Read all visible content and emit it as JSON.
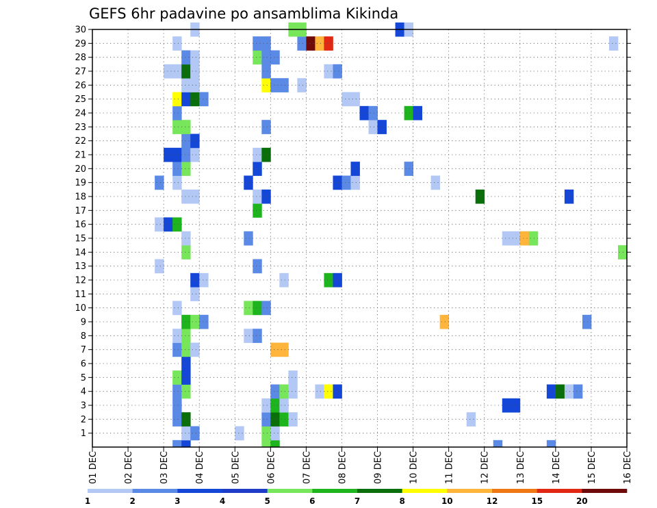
{
  "chart_data": {
    "type": "heatmap",
    "title": "GEFS 6hr padavine po ansamblima Kikinda",
    "xlabel": "",
    "ylabel": "",
    "x_tick_labels": [
      "01 DEC",
      "02 DEC",
      "03 DEC",
      "04 DEC",
      "05 DEC",
      "06 DEC",
      "07 DEC",
      "08 DEC",
      "09 DEC",
      "10 DEC",
      "11 DEC",
      "12 DEC",
      "13 DEC",
      "14 DEC",
      "15 DEC",
      "16 DEC"
    ],
    "y_tick_labels": [
      "1",
      "2",
      "3",
      "4",
      "5",
      "6",
      "7",
      "8",
      "9",
      "10",
      "11",
      "12",
      "13",
      "14",
      "15",
      "16",
      "17",
      "18",
      "19",
      "20",
      "21",
      "22",
      "23",
      "24",
      "25",
      "26",
      "27",
      "28",
      "29",
      "30"
    ],
    "xlim": [
      0,
      15
    ],
    "ylim": [
      0,
      30
    ],
    "time_step_days": 0.25,
    "grid": true,
    "colorbar": {
      "placement": "bottom",
      "bounds": [
        "1",
        "2",
        "3",
        "4",
        "5",
        "6",
        "7",
        "8",
        "10",
        "12",
        "15",
        "20"
      ],
      "colors": [
        "#b4c8f5",
        "#5a8ae6",
        "#1446d7",
        "#1e3cc8",
        "#78e65a",
        "#1eb41e",
        "#0a6e0a",
        "#ffff00",
        "#ffb43c",
        "#f07814",
        "#e02814",
        "#6e0a0a"
      ]
    },
    "cells": [
      {
        "day": 2.25,
        "m": 0,
        "v": 2
      },
      {
        "day": 2.5,
        "m": 0,
        "v": 3
      },
      {
        "day": 4.75,
        "m": 0,
        "v": 5
      },
      {
        "day": 5.0,
        "m": 0,
        "v": 6
      },
      {
        "day": 11.25,
        "m": 0,
        "v": 2
      },
      {
        "day": 12.75,
        "m": 0,
        "v": 2
      },
      {
        "day": 2.5,
        "m": 1,
        "v": 1
      },
      {
        "day": 2.75,
        "m": 1,
        "v": 2
      },
      {
        "day": 4.0,
        "m": 1,
        "v": 1
      },
      {
        "day": 4.75,
        "m": 1,
        "v": 5
      },
      {
        "day": 5.0,
        "m": 1,
        "v": 1
      },
      {
        "day": 2.25,
        "m": 2,
        "v": 2
      },
      {
        "day": 2.5,
        "m": 2,
        "v": 7.5
      },
      {
        "day": 4.75,
        "m": 2,
        "v": 2
      },
      {
        "day": 5.0,
        "m": 2,
        "v": 7
      },
      {
        "day": 5.25,
        "m": 2,
        "v": 6
      },
      {
        "day": 5.5,
        "m": 2,
        "v": 1
      },
      {
        "day": 10.5,
        "m": 2,
        "v": 1
      },
      {
        "day": 2.25,
        "m": 3,
        "v": 2
      },
      {
        "day": 4.75,
        "m": 3,
        "v": 1
      },
      {
        "day": 5.0,
        "m": 3,
        "v": 6
      },
      {
        "day": 5.25,
        "m": 3,
        "v": 1
      },
      {
        "day": 11.5,
        "m": 3,
        "v": 3
      },
      {
        "day": 11.75,
        "m": 3,
        "v": 3
      },
      {
        "day": 2.25,
        "m": 4,
        "v": 2
      },
      {
        "day": 2.5,
        "m": 4,
        "v": 5
      },
      {
        "day": 5.0,
        "m": 4,
        "v": 2
      },
      {
        "day": 5.25,
        "m": 4,
        "v": 5
      },
      {
        "day": 5.5,
        "m": 4,
        "v": 1
      },
      {
        "day": 6.25,
        "m": 4,
        "v": 1
      },
      {
        "day": 6.5,
        "m": 4,
        "v": 9
      },
      {
        "day": 6.75,
        "m": 4,
        "v": 3
      },
      {
        "day": 12.75,
        "m": 4,
        "v": 3
      },
      {
        "day": 13.0,
        "m": 4,
        "v": 7
      },
      {
        "day": 13.25,
        "m": 4,
        "v": 1
      },
      {
        "day": 13.5,
        "m": 4,
        "v": 2
      },
      {
        "day": 2.25,
        "m": 5,
        "v": 5
      },
      {
        "day": 2.5,
        "m": 5,
        "v": 3
      },
      {
        "day": 5.5,
        "m": 5,
        "v": 1
      },
      {
        "day": 2.5,
        "m": 6,
        "v": 3
      },
      {
        "day": 2.25,
        "m": 7,
        "v": 2
      },
      {
        "day": 2.5,
        "m": 7,
        "v": 5
      },
      {
        "day": 2.75,
        "m": 7,
        "v": 1
      },
      {
        "day": 5.0,
        "m": 7,
        "v": 11
      },
      {
        "day": 5.25,
        "m": 7,
        "v": 11
      },
      {
        "day": 2.25,
        "m": 8,
        "v": 1
      },
      {
        "day": 2.5,
        "m": 8,
        "v": 5
      },
      {
        "day": 4.25,
        "m": 8,
        "v": 1
      },
      {
        "day": 4.5,
        "m": 8,
        "v": 2
      },
      {
        "day": 2.5,
        "m": 9,
        "v": 6
      },
      {
        "day": 2.75,
        "m": 9,
        "v": 5
      },
      {
        "day": 3.0,
        "m": 9,
        "v": 2
      },
      {
        "day": 9.75,
        "m": 9,
        "v": 11
      },
      {
        "day": 13.75,
        "m": 9,
        "v": 2
      },
      {
        "day": 2.25,
        "m": 10,
        "v": 1
      },
      {
        "day": 4.25,
        "m": 10,
        "v": 5
      },
      {
        "day": 4.5,
        "m": 10,
        "v": 6
      },
      {
        "day": 4.75,
        "m": 10,
        "v": 2
      },
      {
        "day": 2.75,
        "m": 11,
        "v": 1
      },
      {
        "day": 2.75,
        "m": 12,
        "v": 3
      },
      {
        "day": 3.0,
        "m": 12,
        "v": 1
      },
      {
        "day": 5.25,
        "m": 12,
        "v": 1
      },
      {
        "day": 6.5,
        "m": 12,
        "v": 6
      },
      {
        "day": 6.75,
        "m": 12,
        "v": 3
      },
      {
        "day": 1.75,
        "m": 13,
        "v": 1
      },
      {
        "day": 4.5,
        "m": 13,
        "v": 2
      },
      {
        "day": 2.5,
        "m": 14,
        "v": 5
      },
      {
        "day": 14.75,
        "m": 14,
        "v": 5
      },
      {
        "day": 2.5,
        "m": 15,
        "v": 1
      },
      {
        "day": 4.25,
        "m": 15,
        "v": 2
      },
      {
        "day": 11.5,
        "m": 15,
        "v": 1
      },
      {
        "day": 11.75,
        "m": 15,
        "v": 1
      },
      {
        "day": 12.0,
        "m": 15,
        "v": 11
      },
      {
        "day": 12.25,
        "m": 15,
        "v": 5
      },
      {
        "day": 1.75,
        "m": 16,
        "v": 1
      },
      {
        "day": 2.0,
        "m": 16,
        "v": 3
      },
      {
        "day": 2.25,
        "m": 16,
        "v": 6
      },
      {
        "day": 4.5,
        "m": 17,
        "v": 6
      },
      {
        "day": 2.5,
        "m": 18,
        "v": 1
      },
      {
        "day": 2.75,
        "m": 18,
        "v": 1
      },
      {
        "day": 4.5,
        "m": 18,
        "v": 1
      },
      {
        "day": 4.75,
        "m": 18,
        "v": 3
      },
      {
        "day": 10.75,
        "m": 18,
        "v": 7.5
      },
      {
        "day": 13.25,
        "m": 18,
        "v": 3
      },
      {
        "day": 1.75,
        "m": 19,
        "v": 2
      },
      {
        "day": 2.25,
        "m": 19,
        "v": 1
      },
      {
        "day": 4.25,
        "m": 19,
        "v": 3
      },
      {
        "day": 6.75,
        "m": 19,
        "v": 3
      },
      {
        "day": 7.0,
        "m": 19,
        "v": 2
      },
      {
        "day": 7.25,
        "m": 19,
        "v": 1
      },
      {
        "day": 9.5,
        "m": 19,
        "v": 1
      },
      {
        "day": 2.25,
        "m": 20,
        "v": 2
      },
      {
        "day": 2.5,
        "m": 20,
        "v": 5
      },
      {
        "day": 4.5,
        "m": 20,
        "v": 3
      },
      {
        "day": 7.25,
        "m": 20,
        "v": 3
      },
      {
        "day": 8.75,
        "m": 20,
        "v": 2
      },
      {
        "day": 2.0,
        "m": 21,
        "v": 3
      },
      {
        "day": 2.25,
        "m": 21,
        "v": 3
      },
      {
        "day": 2.5,
        "m": 21,
        "v": 2
      },
      {
        "day": 2.75,
        "m": 21,
        "v": 1
      },
      {
        "day": 4.5,
        "m": 21,
        "v": 1
      },
      {
        "day": 4.75,
        "m": 21,
        "v": 7
      },
      {
        "day": 2.5,
        "m": 22,
        "v": 2
      },
      {
        "day": 2.75,
        "m": 22,
        "v": 3
      },
      {
        "day": 2.25,
        "m": 23,
        "v": 5
      },
      {
        "day": 2.5,
        "m": 23,
        "v": 5
      },
      {
        "day": 4.75,
        "m": 23,
        "v": 2
      },
      {
        "day": 7.75,
        "m": 23,
        "v": 1
      },
      {
        "day": 8.0,
        "m": 23,
        "v": 3
      },
      {
        "day": 2.25,
        "m": 24,
        "v": 2
      },
      {
        "day": 7.5,
        "m": 24,
        "v": 3
      },
      {
        "day": 7.75,
        "m": 24,
        "v": 2
      },
      {
        "day": 8.75,
        "m": 24,
        "v": 6
      },
      {
        "day": 9.0,
        "m": 24,
        "v": 3
      },
      {
        "day": 2.25,
        "m": 25,
        "v": 9
      },
      {
        "day": 2.5,
        "m": 25,
        "v": 3
      },
      {
        "day": 2.75,
        "m": 25,
        "v": 7
      },
      {
        "day": 3.0,
        "m": 25,
        "v": 2
      },
      {
        "day": 7.0,
        "m": 25,
        "v": 1
      },
      {
        "day": 7.25,
        "m": 25,
        "v": 1
      },
      {
        "day": 2.5,
        "m": 26,
        "v": 1
      },
      {
        "day": 2.75,
        "m": 26,
        "v": 1
      },
      {
        "day": 4.75,
        "m": 26,
        "v": 9
      },
      {
        "day": 5.0,
        "m": 26,
        "v": 2
      },
      {
        "day": 5.25,
        "m": 26,
        "v": 2
      },
      {
        "day": 5.75,
        "m": 26,
        "v": 1
      },
      {
        "day": 2.0,
        "m": 27,
        "v": 1
      },
      {
        "day": 2.25,
        "m": 27,
        "v": 1
      },
      {
        "day": 2.5,
        "m": 27,
        "v": 7
      },
      {
        "day": 2.75,
        "m": 27,
        "v": 1
      },
      {
        "day": 4.75,
        "m": 27,
        "v": 2
      },
      {
        "day": 6.5,
        "m": 27,
        "v": 1
      },
      {
        "day": 6.75,
        "m": 27,
        "v": 2
      },
      {
        "day": 2.5,
        "m": 28,
        "v": 2
      },
      {
        "day": 2.75,
        "m": 28,
        "v": 1
      },
      {
        "day": 4.5,
        "m": 28,
        "v": 5
      },
      {
        "day": 4.75,
        "m": 28,
        "v": 2
      },
      {
        "day": 5.0,
        "m": 28,
        "v": 2
      },
      {
        "day": 2.25,
        "m": 29,
        "v": 1
      },
      {
        "day": 4.5,
        "m": 29,
        "v": 2
      },
      {
        "day": 4.75,
        "m": 29,
        "v": 2
      },
      {
        "day": 5.75,
        "m": 29,
        "v": 2
      },
      {
        "day": 6.0,
        "m": 29,
        "v": 21
      },
      {
        "day": 6.25,
        "m": 29,
        "v": 10
      },
      {
        "day": 6.5,
        "m": 29,
        "v": 16
      },
      {
        "day": 14.5,
        "m": 29,
        "v": 1
      },
      {
        "day": 2.75,
        "m": 30,
        "v": 1
      },
      {
        "day": 5.5,
        "m": 30,
        "v": 5
      },
      {
        "day": 5.75,
        "m": 30,
        "v": 5
      },
      {
        "day": 8.5,
        "m": 30,
        "v": 3
      },
      {
        "day": 8.75,
        "m": 30,
        "v": 1
      }
    ]
  }
}
